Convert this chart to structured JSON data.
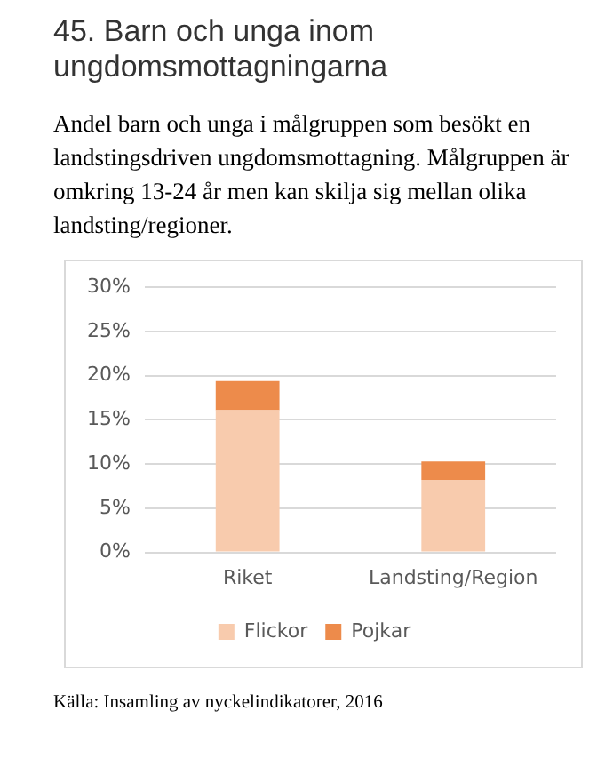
{
  "chart_data": {
    "type": "bar",
    "title": "45. Barn och unga inom ungdomsmottagningarna",
    "subtitle": "Andel barn och unga i målgruppen som besökt en landstingsdriven ungdomsmottagning. Målgruppen är omkring 13-24 år men kan skilja sig mellan olika landsting/regioner.",
    "annotations": [
      "Källa: Insamling av nyckelindikatorer, 2016"
    ],
    "categories": [
      "Riket",
      "Landsting/Region"
    ],
    "stacked": true,
    "series": [
      {
        "name": "Flickor",
        "color": "#f8cbad",
        "values": [
          16.1,
          8.2
        ]
      },
      {
        "name": "Pojkar",
        "color": "#ed8b4b",
        "values": [
          3.3,
          2.1
        ]
      }
    ],
    "ylim": [
      0,
      30
    ],
    "yticks": [
      {
        "value": 0,
        "label": "0%"
      },
      {
        "value": 5,
        "label": "5%"
      },
      {
        "value": 10,
        "label": "10%"
      },
      {
        "value": 15,
        "label": "15%"
      },
      {
        "value": 20,
        "label": "20%"
      },
      {
        "value": 25,
        "label": "25%"
      },
      {
        "value": 30,
        "label": "30%"
      }
    ],
    "grid": "y",
    "legend": "bottom"
  }
}
